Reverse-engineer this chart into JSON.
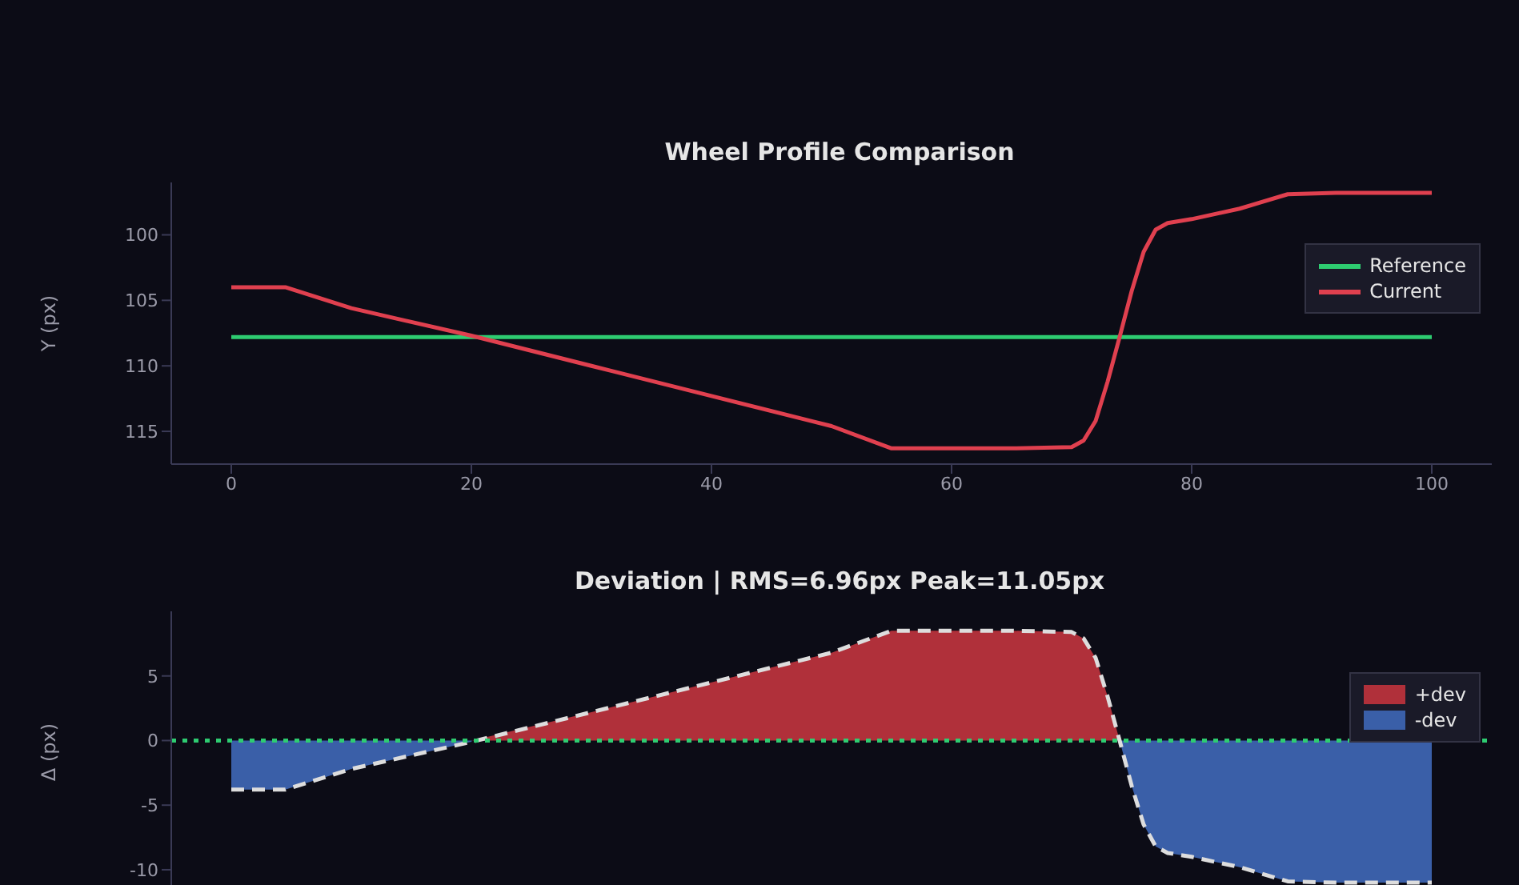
{
  "chart_data": [
    {
      "type": "line",
      "title": "Wheel Profile Comparison",
      "ylabel": "Y (px)",
      "xlim": [
        -5,
        105
      ],
      "xticks": [
        0,
        20,
        40,
        60,
        80,
        100
      ],
      "ylim": [
        117.5,
        96
      ],
      "yticks": [
        100,
        105,
        110,
        115
      ],
      "legend": "top right",
      "grid": false,
      "series": [
        {
          "name": "Reference",
          "color": "#2ecc71",
          "x": [
            0,
            100
          ],
          "values": [
            107.8,
            107.8
          ]
        },
        {
          "name": "Current",
          "color": "#e0404f",
          "x": [
            0,
            4.5,
            10,
            20,
            30,
            40,
            50,
            55,
            60,
            65,
            70,
            71,
            72,
            73,
            74,
            75,
            76,
            77,
            78,
            80,
            84,
            88,
            92,
            100
          ],
          "values": [
            104.0,
            104.0,
            105.6,
            107.7,
            110.0,
            112.3,
            114.6,
            116.3,
            116.3,
            116.3,
            116.2,
            115.7,
            114.2,
            111.2,
            107.8,
            104.3,
            101.3,
            99.6,
            99.1,
            98.8,
            98.0,
            96.9,
            96.8,
            96.8
          ]
        }
      ]
    },
    {
      "type": "area",
      "title": "Deviation | RMS=6.96px Peak=11.05px",
      "ylabel": "Δ (px)",
      "xlim": [
        -5,
        105
      ],
      "xticks": [
        0,
        20,
        40,
        60,
        80,
        100
      ],
      "ylim": [
        -11.8,
        10
      ],
      "yticks": [
        -10,
        -5,
        0,
        5
      ],
      "tick_labels": "y",
      "legend": "top right",
      "grid": false,
      "ref_lines": [
        {
          "axis": "y",
          "value": 0,
          "color": "#2ecc71",
          "line_style": "dotted"
        }
      ],
      "series": [
        {
          "name": "+dev",
          "color": "#b0303a",
          "x": [
            20.05,
            30,
            40,
            50,
            55,
            60,
            65,
            70,
            71,
            72,
            73,
            74
          ],
          "values": [
            0,
            2.2,
            4.5,
            6.8,
            8.5,
            8.5,
            8.5,
            8.4,
            7.9,
            6.4,
            3.4,
            0
          ]
        },
        {
          "name": "-dev",
          "color": "#3a5fa8",
          "x": [
            0,
            4.5,
            10,
            20,
            20.05,
            50,
            74,
            75,
            76,
            77,
            78,
            80,
            84,
            88,
            92,
            100
          ],
          "values": [
            -3.8,
            -3.8,
            -2.2,
            -0.1,
            0,
            null,
            0,
            -3.5,
            -6.5,
            -8.2,
            -8.7,
            -9.0,
            -9.8,
            -10.9,
            -11.0,
            -11.0
          ]
        },
        {
          "type": "line",
          "line_style": "dashed",
          "color": "#dddddd",
          "x": [
            0,
            4.5,
            10,
            20,
            30,
            40,
            50,
            55,
            60,
            65,
            70,
            71,
            72,
            73,
            74,
            75,
            76,
            77,
            78,
            80,
            84,
            88,
            92,
            100
          ],
          "values": [
            -3.8,
            -3.8,
            -2.2,
            -0.1,
            2.2,
            4.5,
            6.8,
            8.5,
            8.5,
            8.5,
            8.4,
            7.9,
            6.4,
            3.4,
            0,
            -3.5,
            -6.5,
            -8.2,
            -8.7,
            -9.0,
            -9.8,
            -10.9,
            -11.0,
            -11.0
          ]
        }
      ]
    }
  ]
}
